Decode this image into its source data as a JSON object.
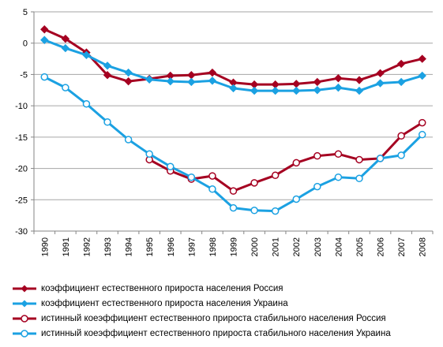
{
  "chart_data": {
    "type": "line",
    "categories": [
      "1990",
      "1991",
      "1992",
      "1993",
      "1994",
      "1995",
      "1996",
      "1997",
      "1998",
      "1999",
      "2000",
      "2001",
      "2002",
      "2003",
      "2004",
      "2005",
      "2006",
      "2007",
      "2008"
    ],
    "ylim": [
      -30,
      5
    ],
    "yticks": [
      5,
      0,
      -5,
      -10,
      -15,
      -20,
      -25,
      -30
    ],
    "grid": true,
    "legend_position": "bottom",
    "series": [
      {
        "name": "коэффициент естественного прироста населения Россия",
        "color": "#a50021",
        "marker": "diamond",
        "values": [
          2.2,
          0.7,
          -1.5,
          -5.1,
          -6.1,
          -5.7,
          -5.2,
          -5.1,
          -4.7,
          -6.3,
          -6.6,
          -6.6,
          -6.5,
          -6.2,
          -5.6,
          -5.9,
          -4.8,
          -3.3,
          -2.5
        ]
      },
      {
        "name": "коэффициент естественного прироста населения Украина",
        "color": "#1ba1e2",
        "marker": "diamond",
        "values": [
          0.5,
          -0.8,
          -1.9,
          -3.6,
          -4.7,
          -5.8,
          -6.1,
          -6.2,
          -6.0,
          -7.2,
          -7.6,
          -7.6,
          -7.6,
          -7.5,
          -7.1,
          -7.6,
          -6.4,
          -6.2,
          -5.2
        ]
      },
      {
        "name": "истинный коеэффициент естественного прироста стабильного населения Россия",
        "color": "#a50021",
        "marker": "circle",
        "values": [
          null,
          null,
          null,
          null,
          null,
          -18.6,
          -20.4,
          -21.7,
          -21.2,
          -23.6,
          -22.3,
          -21.1,
          -19.1,
          -18.0,
          -17.7,
          -18.6,
          -18.4,
          -14.8,
          -12.7
        ]
      },
      {
        "name": "истинный коеэффициент естественного прироста стабильного населения Украина",
        "color": "#1ba1e2",
        "marker": "circle",
        "values": [
          -5.4,
          -7.1,
          -9.7,
          -12.6,
          -15.4,
          -17.7,
          -19.7,
          -21.4,
          -23.3,
          -26.3,
          -26.7,
          -26.8,
          -24.9,
          -22.9,
          -21.4,
          -21.6,
          -18.4,
          -17.9,
          -14.6
        ]
      }
    ]
  }
}
